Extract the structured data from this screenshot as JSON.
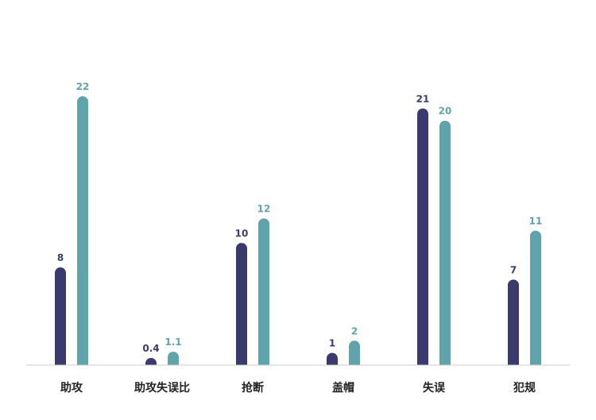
{
  "chart_data": {
    "type": "bar",
    "categories": [
      "助攻",
      "助攻失误比",
      "抢断",
      "盖帽",
      "失误",
      "犯规"
    ],
    "series": [
      {
        "values": [
          8,
          0.4,
          10,
          1,
          21,
          7
        ],
        "color": "#3b3a6e"
      },
      {
        "values": [
          22,
          1.1,
          12,
          2,
          20,
          11
        ],
        "color": "#5fa3ab"
      }
    ],
    "value_labels": [
      [
        "8",
        "0.4",
        "10",
        "1",
        "21",
        "7"
      ],
      [
        "22",
        "1.1",
        "12",
        "2",
        "20",
        "11"
      ]
    ],
    "ylim": [
      0,
      22
    ],
    "grid": false,
    "legend": "none",
    "axis_color": "#cccccc"
  }
}
